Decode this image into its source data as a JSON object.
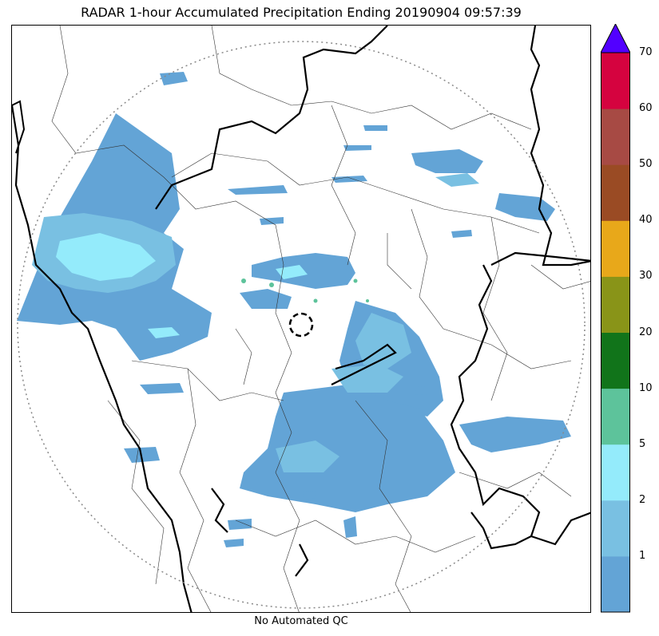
{
  "title": "RADAR 1-hour Accumulated Precipitation Ending 20190904 09:57:39",
  "footer": "No Automated QC",
  "colorbar": {
    "extend_max": true,
    "extend_color": "#5200ff",
    "bins": [
      {
        "from": 0,
        "to": 1,
        "color": "#63a4d6"
      },
      {
        "from": 1,
        "to": 2,
        "color": "#79c0e2"
      },
      {
        "from": 2,
        "to": 5,
        "color": "#94ebfb"
      },
      {
        "from": 5,
        "to": 10,
        "color": "#5dc39b"
      },
      {
        "from": 10,
        "to": 20,
        "color": "#11741a"
      },
      {
        "from": 20,
        "to": 30,
        "color": "#899418"
      },
      {
        "from": 30,
        "to": 40,
        "color": "#e8a81a"
      },
      {
        "from": 40,
        "to": 50,
        "color": "#9a4b24"
      },
      {
        "from": 50,
        "to": 60,
        "color": "#a74a44"
      },
      {
        "from": 60,
        "to": 70,
        "color": "#d5033f"
      }
    ],
    "tick_labels": [
      "1",
      "2",
      "5",
      "10",
      "20",
      "30",
      "40",
      "50",
      "60",
      "70"
    ]
  },
  "map": {
    "radar_site_marker": "dashed-circle",
    "range_ring": "dotted-circle"
  }
}
